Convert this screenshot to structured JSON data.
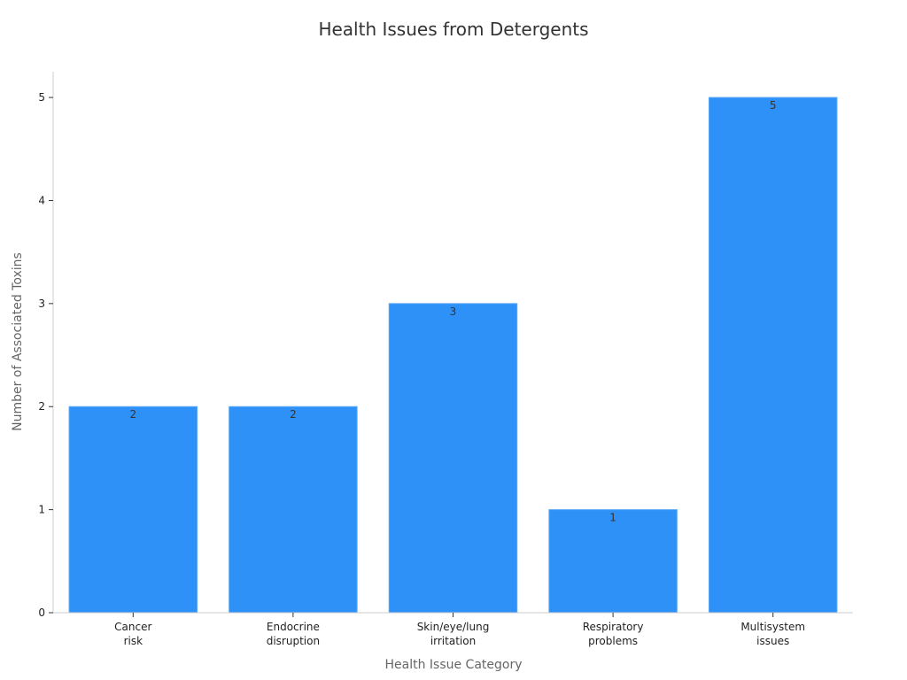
{
  "chart_data": {
    "type": "bar",
    "title": "Health Issues from Detergents",
    "xlabel": "Health Issue Category",
    "ylabel": "Number of Associated Toxins",
    "categories": [
      [
        "Cancer",
        "risk"
      ],
      [
        "Endocrine",
        "disruption"
      ],
      [
        "Skin/eye/lung",
        "irritation"
      ],
      [
        "Respiratory",
        "problems"
      ],
      [
        "Multisystem",
        "issues"
      ]
    ],
    "values": [
      2,
      2,
      3,
      1,
      5
    ],
    "data_labels": [
      "2",
      "2",
      "3",
      "1",
      "5"
    ],
    "y_ticks": [
      0,
      1,
      2,
      3,
      4,
      5
    ],
    "ylim": [
      0,
      5.25
    ],
    "bar_color": "#2E91F7",
    "grid": false,
    "legend": "none"
  }
}
